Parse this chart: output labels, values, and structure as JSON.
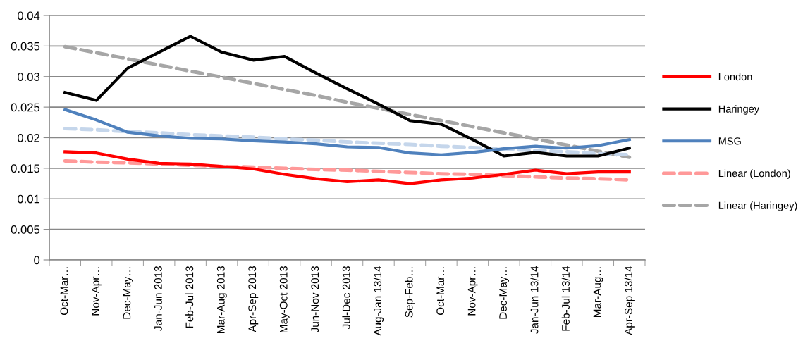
{
  "chart_data": {
    "type": "line",
    "categories": [
      "Oct-Mar…",
      "Nov-Apr…",
      "Dec-May…",
      "Jan-Jun 2013",
      "Feb-Jul 2013",
      "Mar-Aug 2013",
      "Apr-Sep 2013",
      "May-Oct 2013",
      "Jun-Nov 2013",
      "Jul-Dec 2013",
      "Aug-Jan 13/14",
      "Sep-Feb…",
      "Oct-Mar…",
      "Nov-Apr…",
      "Dec-May…",
      "Jan-Jun 13/14",
      "Feb-Jul 13/14",
      "Mar-Aug…",
      "Apr-Sep 13/14"
    ],
    "series": [
      {
        "name": "London",
        "color": "#ff0000",
        "line_style": "solid",
        "values": [
          0.0177,
          0.0175,
          0.0165,
          0.0158,
          0.0157,
          0.0153,
          0.0149,
          0.014,
          0.0133,
          0.0128,
          0.0131,
          0.0125,
          0.0131,
          0.0134,
          0.014,
          0.0147,
          0.0141,
          0.0144,
          0.0144
        ]
      },
      {
        "name": "Haringey",
        "color": "#000000",
        "line_style": "solid",
        "values": [
          0.0274,
          0.0261,
          0.0314,
          0.034,
          0.0366,
          0.034,
          0.0327,
          0.0333,
          0.0306,
          0.028,
          0.0255,
          0.0228,
          0.0222,
          0.0197,
          0.017,
          0.0176,
          0.017,
          0.017,
          0.0183
        ]
      },
      {
        "name": "MSG",
        "color": "#4f81bd",
        "line_style": "solid",
        "values": [
          0.0246,
          0.0229,
          0.0209,
          0.0203,
          0.0199,
          0.0198,
          0.0195,
          0.0193,
          0.019,
          0.0185,
          0.0184,
          0.0175,
          0.0172,
          0.0176,
          0.0182,
          0.0186,
          0.0183,
          0.0187,
          0.0197
        ]
      },
      {
        "name": "Linear (London)",
        "color": "#ff9999",
        "line_style": "dashed",
        "values": [
          0.0162,
          0.016,
          0.0159,
          0.0157,
          0.0155,
          0.0153,
          0.0152,
          0.015,
          0.0148,
          0.0147,
          0.0145,
          0.0143,
          0.0141,
          0.014,
          0.0138,
          0.0136,
          0.0134,
          0.0133,
          0.0131
        ]
      },
      {
        "name": "Linear (Haringey)",
        "color": "#a6a6a6",
        "line_style": "dashed",
        "values": [
          0.0349,
          0.0339,
          0.0329,
          0.0319,
          0.0309,
          0.0299,
          0.0289,
          0.0279,
          0.0269,
          0.0258,
          0.0248,
          0.0238,
          0.0228,
          0.0218,
          0.0208,
          0.0198,
          0.0188,
          0.0178,
          0.0168
        ]
      },
      {
        "color": "#c5d6eb",
        "line_style": "dashed",
        "values": [
          0.0215,
          0.0213,
          0.021,
          0.0208,
          0.0205,
          0.0203,
          0.0201,
          0.0198,
          0.0196,
          0.0193,
          0.0191,
          0.0189,
          0.0186,
          0.0184,
          0.0181,
          0.0179,
          0.0177,
          0.0174,
          0.0172
        ]
      }
    ],
    "ylim": [
      0,
      0.04
    ],
    "yticks": [
      0,
      0.005,
      0.01,
      0.015,
      0.02,
      0.025,
      0.03,
      0.035,
      0.04
    ],
    "grid": "y",
    "legend": "right",
    "marker": "none"
  }
}
